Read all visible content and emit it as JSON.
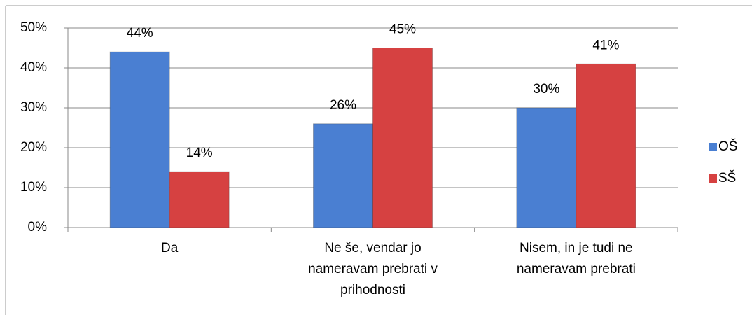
{
  "chart_data": {
    "type": "bar",
    "categories": [
      "Da",
      "Ne še, vendar jo nameravam prebrati v prihodnosti",
      "Nisem, in je tudi ne nameravam prebrati"
    ],
    "series": [
      {
        "name": "OŠ",
        "color": "#4a7fd2",
        "values": [
          44,
          26,
          30
        ],
        "value_labels": [
          "44%",
          "26%",
          "30%"
        ]
      },
      {
        "name": "SŠ",
        "color": "#d64141",
        "values": [
          14,
          45,
          41
        ],
        "value_labels": [
          "14%",
          "45%",
          "41%"
        ]
      }
    ],
    "ylim": [
      0,
      50
    ],
    "yticks": [
      {
        "value": 0,
        "label": "0%"
      },
      {
        "value": 10,
        "label": "10%"
      },
      {
        "value": 20,
        "label": "20%"
      },
      {
        "value": 30,
        "label": "30%"
      },
      {
        "value": 40,
        "label": "40%"
      },
      {
        "value": 50,
        "label": "50%"
      }
    ],
    "grid": true,
    "legend": "right"
  }
}
